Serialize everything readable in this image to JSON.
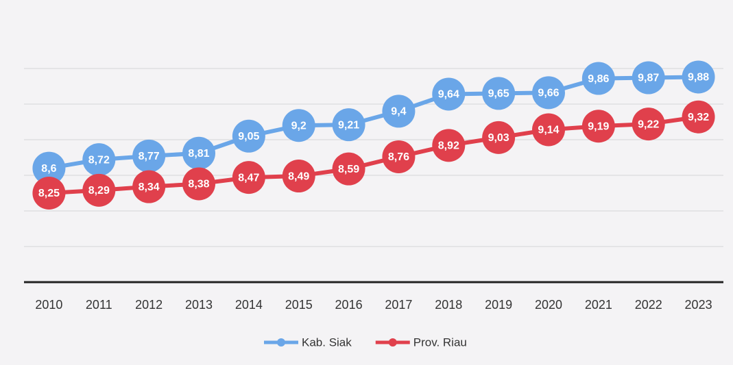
{
  "chart_data": {
    "type": "line",
    "categories": [
      "2010",
      "2011",
      "2012",
      "2013",
      "2014",
      "2015",
      "2016",
      "2017",
      "2018",
      "2019",
      "2020",
      "2021",
      "2022",
      "2023"
    ],
    "series": [
      {
        "name": "Kab. Siak",
        "color": "#6aa6e8",
        "values": [
          8.6,
          8.72,
          8.77,
          8.81,
          9.05,
          9.2,
          9.21,
          9.4,
          9.64,
          9.65,
          9.66,
          9.86,
          9.87,
          9.88
        ],
        "value_labels": [
          "8,6",
          "8,72",
          "8,77",
          "8,81",
          "9,05",
          "9,2",
          "9,21",
          "9,4",
          "9,64",
          "9,65",
          "9,66",
          "9,86",
          "9,87",
          "9,88"
        ]
      },
      {
        "name": "Prov. Riau",
        "color": "#e0404c",
        "values": [
          8.25,
          8.29,
          8.34,
          8.38,
          8.47,
          8.49,
          8.59,
          8.76,
          8.92,
          9.03,
          9.14,
          9.19,
          9.22,
          9.32
        ],
        "value_labels": [
          "8,25",
          "8,29",
          "8,34",
          "8,38",
          "8,47",
          "8,49",
          "8,59",
          "8,76",
          "8,92",
          "9,03",
          "9,14",
          "9,19",
          "9,22",
          "9,32"
        ]
      }
    ],
    "ylim": [
      7,
      10.5
    ],
    "yticks": [
      7,
      7.5,
      8,
      8.5,
      9,
      9.5,
      10
    ],
    "grid": true,
    "legend": "bottom"
  }
}
